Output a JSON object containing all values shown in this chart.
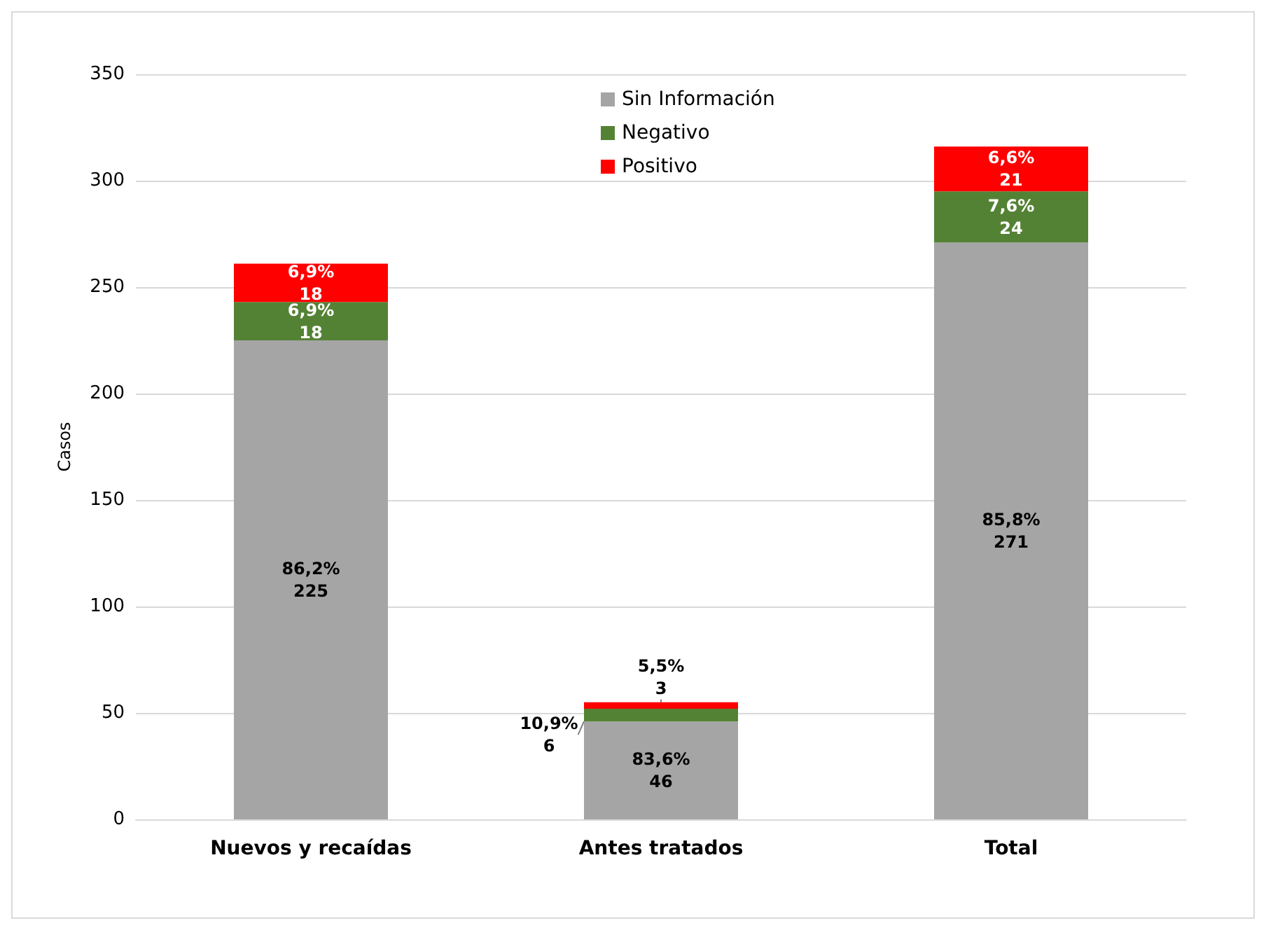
{
  "chart_data": {
    "type": "bar",
    "stacked": true,
    "ylabel": "Casos",
    "categories": [
      "Nuevos y recaídas",
      "Antes tratados",
      "Total"
    ],
    "series": [
      {
        "name": "Sin Información",
        "color": "#a5a5a5",
        "values": [
          225,
          46,
          271
        ],
        "value_labels": [
          "86,2%\n225",
          "83,6%\n46",
          "85,8%\n271"
        ]
      },
      {
        "name": "Negativo",
        "color": "#548235",
        "values": [
          18,
          6,
          24
        ],
        "value_labels": [
          "6,9%\n18",
          "10,9%\n6",
          "7,6%\n24"
        ]
      },
      {
        "name": "Positivo",
        "color": "#ff0000",
        "values": [
          18,
          3,
          21
        ],
        "value_labels": [
          "6,9%\n18",
          "5,5%\n3",
          "6,6%\n21"
        ]
      }
    ],
    "ylim": [
      0,
      350
    ],
    "yticks": [
      0,
      50,
      100,
      150,
      200,
      250,
      300,
      350
    ],
    "grid": "y",
    "legend": "top"
  }
}
